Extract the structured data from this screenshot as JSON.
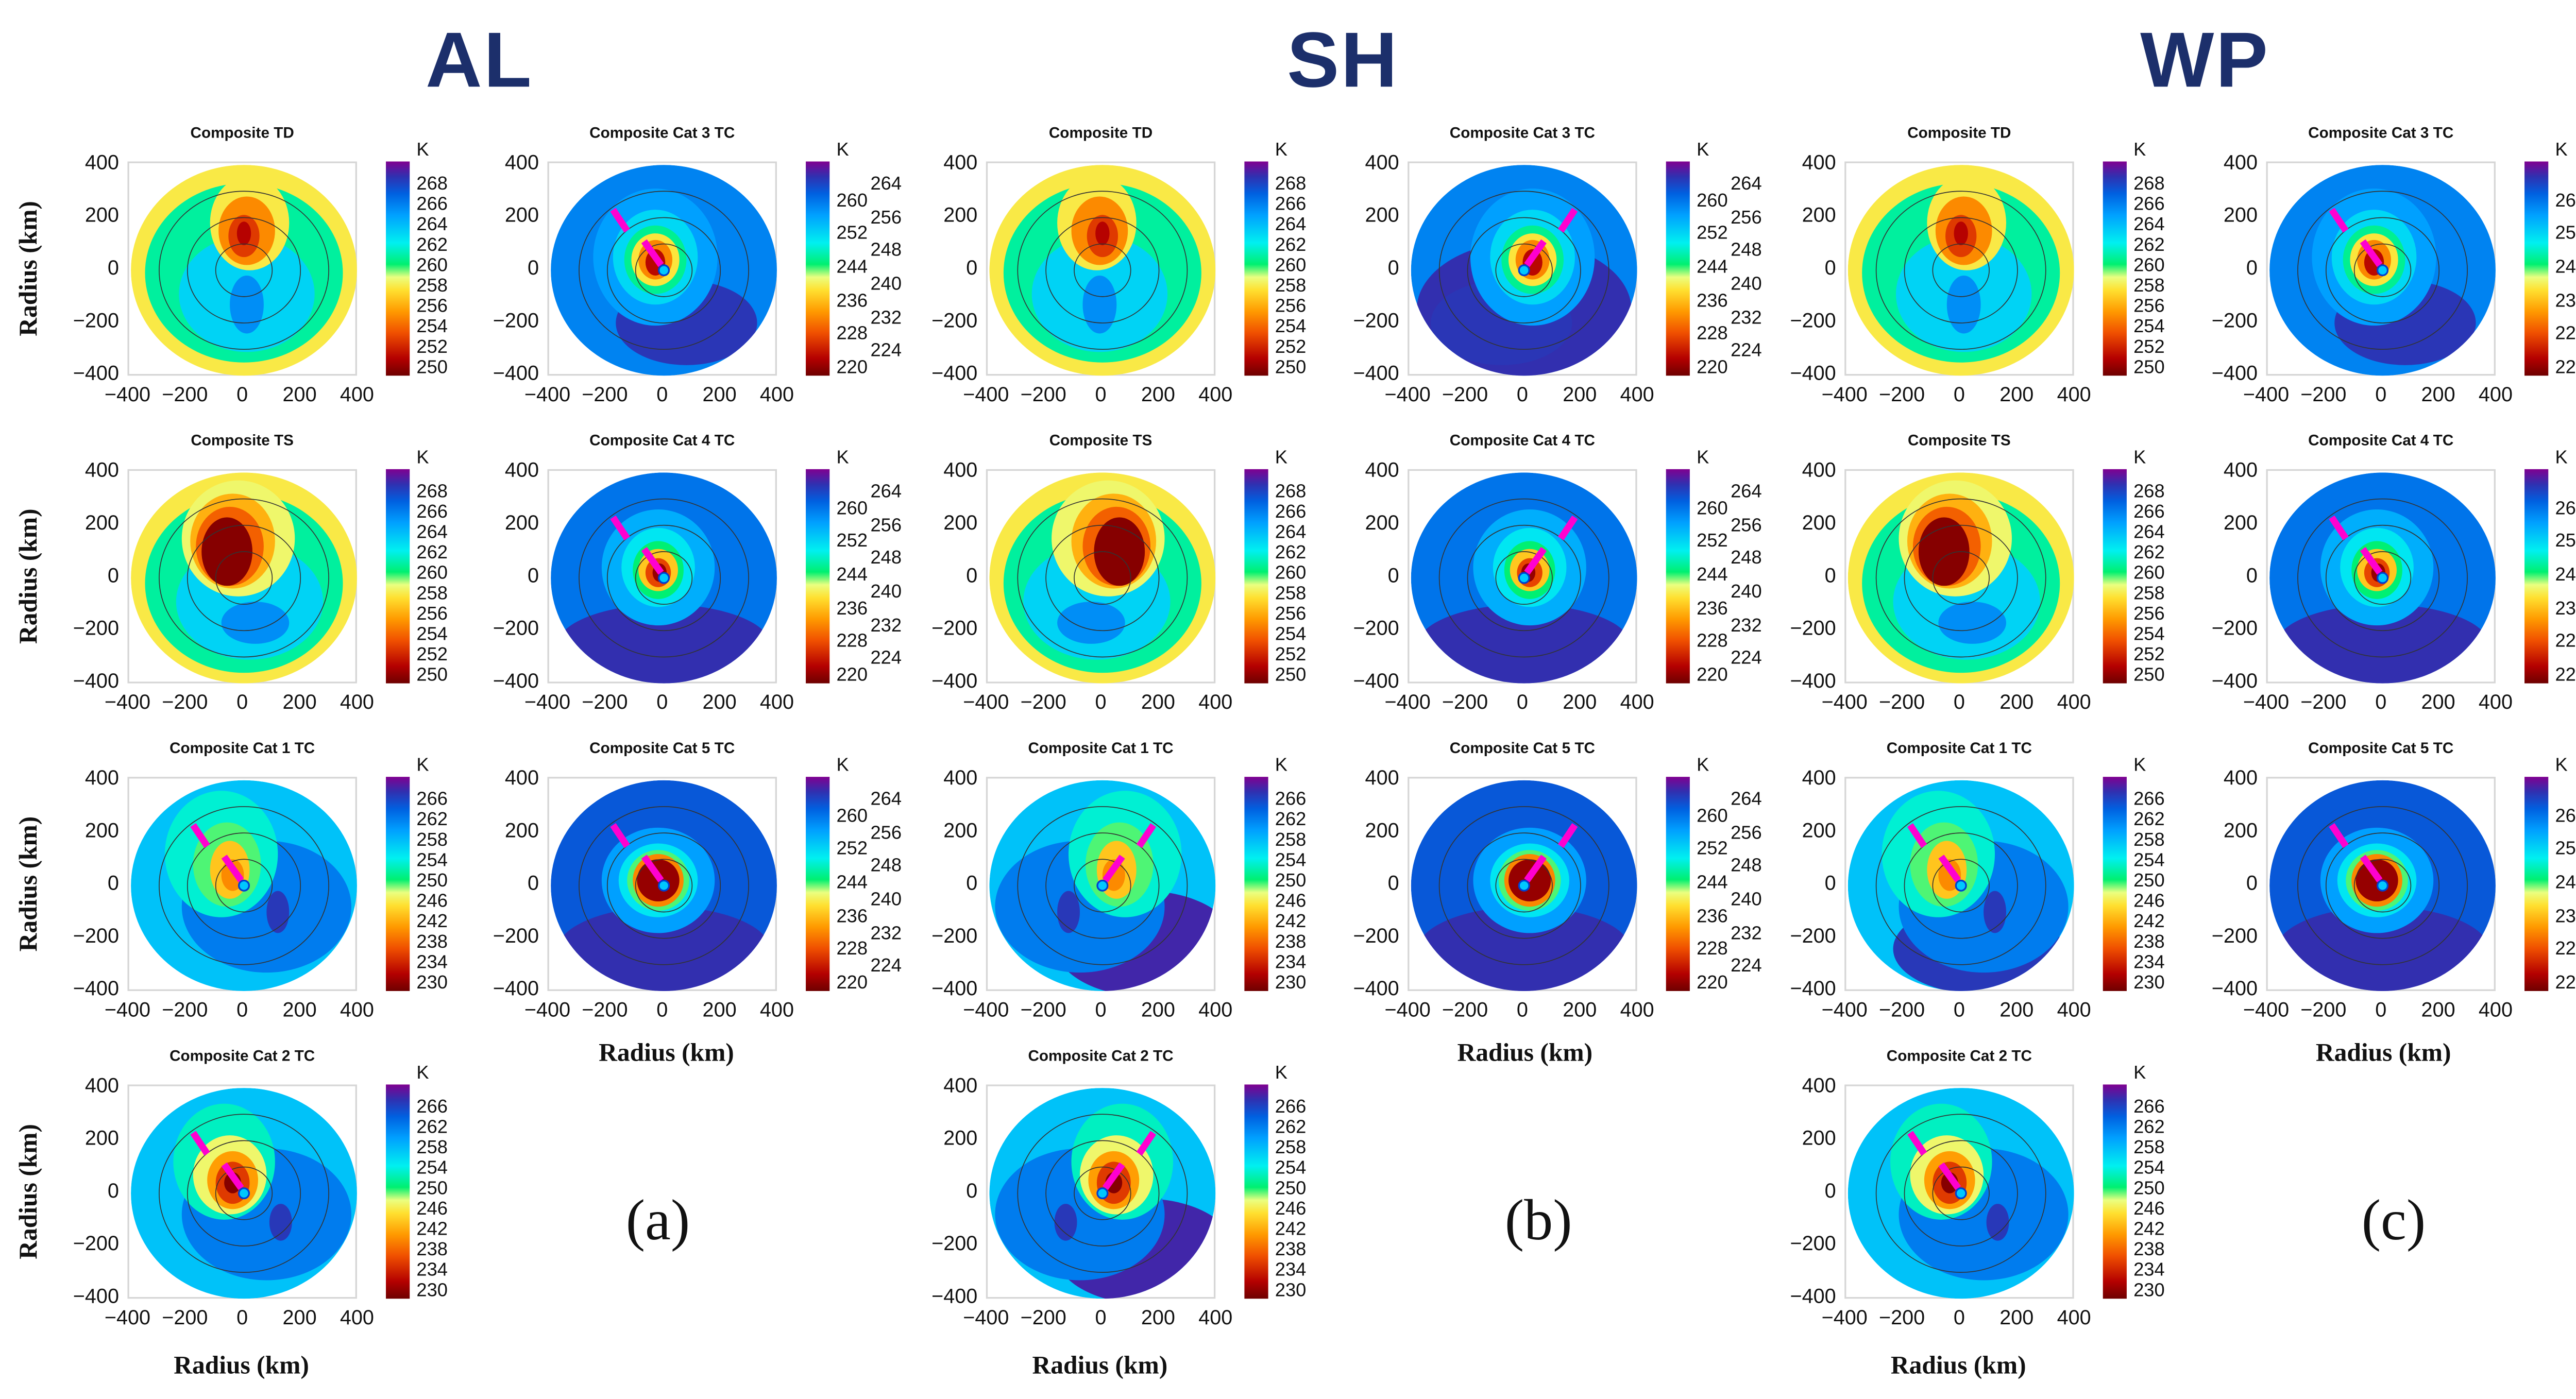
{
  "figure": {
    "basins": [
      "AL",
      "SH",
      "WP"
    ],
    "panel_labels": [
      "(a)",
      "(b)",
      "(c)"
    ],
    "axis_label": "Radius (km)",
    "colorbar_unit": "K",
    "shear_arrow_color": "#ff8ee0"
  },
  "chart_data": {
    "type": "heatmap",
    "description_units": "field layers are [x_km, y_km, rx_km, ry_km, brightness_temperature_K]",
    "x_ticks": [
      "−400",
      "−200",
      "0",
      "200",
      "400"
    ],
    "y_ticks": [
      "400",
      "200",
      "0",
      "−200",
      "−400"
    ],
    "xlim": [
      -400,
      400
    ],
    "ylim": [
      -400,
      400
    ],
    "contour_radii_km": [
      100,
      200,
      300
    ],
    "colormap": [
      [
        "0",
        "#6e0000"
      ],
      [
        "0.08",
        "#b40000"
      ],
      [
        "0.2",
        "#f05000"
      ],
      [
        "0.3",
        "#ff9a00"
      ],
      [
        "0.4",
        "#ffe030"
      ],
      [
        "0.46",
        "#eaff80"
      ],
      [
        "0.52",
        "#00f070"
      ],
      [
        "0.62",
        "#00f0f0"
      ],
      [
        "0.75",
        "#00a0ff"
      ],
      [
        "0.85",
        "#0060e0"
      ],
      [
        "0.93",
        "#3030b0"
      ],
      [
        "1",
        "#800090"
      ]
    ],
    "categories": {
      "TD": {
        "title": "Composite TD",
        "range": [
          250,
          268
        ],
        "ticks": [
          "250",
          "252",
          "254",
          "256",
          "258",
          "260",
          "262",
          "264",
          "266",
          "268"
        ],
        "layers": [
          [
            0,
            0,
            400,
            400,
            257.5
          ],
          [
            0,
            -10,
            350,
            340,
            260
          ],
          [
            10,
            -90,
            240,
            220,
            262
          ],
          [
            10,
            -130,
            60,
            110,
            264
          ],
          [
            20,
            180,
            140,
            180,
            257.5
          ],
          [
            10,
            150,
            100,
            130,
            255
          ],
          [
            0,
            130,
            55,
            80,
            253
          ],
          [
            0,
            140,
            25,
            45,
            251.5
          ]
        ],
        "shear": false
      },
      "TS": {
        "title": "Composite TS",
        "range": [
          250,
          268
        ],
        "ticks": [
          "250",
          "252",
          "254",
          "256",
          "258",
          "260",
          "262",
          "264",
          "266",
          "268"
        ],
        "layers": [
          [
            0,
            0,
            400,
            400,
            257.5
          ],
          [
            0,
            -20,
            350,
            340,
            260
          ],
          [
            20,
            -90,
            260,
            220,
            262
          ],
          [
            40,
            -170,
            120,
            80,
            264
          ],
          [
            -20,
            150,
            200,
            220,
            258
          ],
          [
            -40,
            140,
            150,
            180,
            256
          ],
          [
            -50,
            120,
            120,
            150,
            254
          ],
          [
            -60,
            100,
            90,
            130,
            250.5
          ]
        ],
        "shear": false
      },
      "C1": {
        "title": "Composite Cat  1 TC",
        "range": [
          230,
          266
        ],
        "ticks": [
          "230",
          "234",
          "238",
          "242",
          "246",
          "250",
          "254",
          "258",
          "262",
          "266"
        ],
        "layers": [
          [
            0,
            0,
            400,
            400,
            255
          ],
          [
            80,
            -80,
            300,
            250,
            259
          ],
          [
            120,
            -100,
            40,
            80,
            263
          ],
          [
            -80,
            120,
            200,
            240,
            251.5
          ],
          [
            -60,
            80,
            120,
            160,
            248
          ],
          [
            -50,
            60,
            70,
            110,
            243
          ],
          [
            -40,
            40,
            40,
            60,
            240
          ]
        ],
        "shear": true
      },
      "C2": {
        "title": "Composite Cat  2 TC",
        "range": [
          230,
          266
        ],
        "ticks": [
          "230",
          "234",
          "238",
          "242",
          "246",
          "250",
          "254",
          "258",
          "262",
          "266"
        ],
        "layers": [
          [
            0,
            0,
            400,
            400,
            255
          ],
          [
            80,
            -80,
            300,
            250,
            259
          ],
          [
            130,
            -110,
            40,
            70,
            263
          ],
          [
            -70,
            120,
            180,
            220,
            251
          ],
          [
            -50,
            70,
            130,
            150,
            246
          ],
          [
            -40,
            50,
            90,
            110,
            241
          ],
          [
            -40,
            40,
            60,
            80,
            236
          ],
          [
            -40,
            40,
            30,
            40,
            231
          ]
        ],
        "shear": true
      },
      "C3": {
        "title": "Composite Cat  3 TC",
        "range": [
          220,
          264
        ],
        "ticks": [
          "220",
          "224",
          "228",
          "232",
          "236",
          "240",
          "244",
          "248",
          "252",
          "256",
          "260",
          "264"
        ],
        "layers": [
          [
            0,
            0,
            400,
            400,
            255
          ],
          [
            80,
            -200,
            250,
            160,
            260.5
          ],
          [
            -30,
            50,
            220,
            260,
            253
          ],
          [
            -30,
            50,
            150,
            180,
            249
          ],
          [
            -30,
            40,
            110,
            130,
            244
          ],
          [
            -30,
            40,
            85,
            100,
            238
          ],
          [
            -30,
            40,
            60,
            75,
            232
          ],
          [
            -30,
            30,
            35,
            50,
            224
          ]
        ],
        "shear": true
      },
      "C4": {
        "title": "Composite Cat  4 TC",
        "range": [
          220,
          264
        ],
        "ticks": [
          "220",
          "224",
          "228",
          "232",
          "236",
          "240",
          "244",
          "248",
          "252",
          "256",
          "260",
          "264"
        ],
        "layers": [
          [
            0,
            0,
            400,
            400,
            256
          ],
          [
            0,
            -260,
            380,
            160,
            261
          ],
          [
            -20,
            40,
            200,
            220,
            252
          ],
          [
            -20,
            40,
            130,
            150,
            248
          ],
          [
            -20,
            30,
            90,
            110,
            243
          ],
          [
            -20,
            30,
            70,
            80,
            236
          ],
          [
            -20,
            20,
            45,
            55,
            228
          ],
          [
            -15,
            20,
            25,
            35,
            222
          ]
        ],
        "shear": true
      },
      "C5": {
        "title": "Composite Cat  5 TC",
        "range": [
          220,
          264
        ],
        "ticks": [
          "220",
          "224",
          "228",
          "232",
          "236",
          "240",
          "244",
          "248",
          "252",
          "256",
          "260",
          "264"
        ],
        "layers": [
          [
            0,
            0,
            400,
            400,
            258
          ],
          [
            0,
            -250,
            380,
            170,
            261
          ],
          [
            -20,
            20,
            200,
            200,
            253
          ],
          [
            -20,
            20,
            140,
            140,
            248
          ],
          [
            -20,
            20,
            110,
            115,
            242
          ],
          [
            -20,
            20,
            90,
            100,
            232
          ],
          [
            -20,
            20,
            75,
            80,
            222
          ]
        ],
        "shear": true
      }
    },
    "shear_segments_km": [
      [
        [
          -180,
          230
        ],
        [
          -130,
          150
        ]
      ],
      [
        [
          -70,
          110
        ],
        [
          -10,
          20
        ]
      ]
    ],
    "basin_variants": {
      "AL": {
        "mirror_x": false,
        "extra": {}
      },
      "SH": {
        "mirror_x": true,
        "extra": {
          "C1": [
            [
              -150,
              -220,
              320,
              200,
              264
            ]
          ],
          "C2": [
            [
              -150,
              -220,
              320,
              200,
              264
            ]
          ],
          "C3": [
            [
              0,
              -150,
              380,
              260,
              261
            ]
          ]
        }
      },
      "WP": {
        "mirror_x": false,
        "extra": {
          "C1": [
            [
              60,
              -240,
              300,
              170,
              263
            ]
          ]
        }
      }
    },
    "layout_rows": {
      "left_column": [
        "TD",
        "TS",
        "C1",
        "C2"
      ],
      "right_column": [
        "C3",
        "C4",
        "C5"
      ]
    }
  }
}
